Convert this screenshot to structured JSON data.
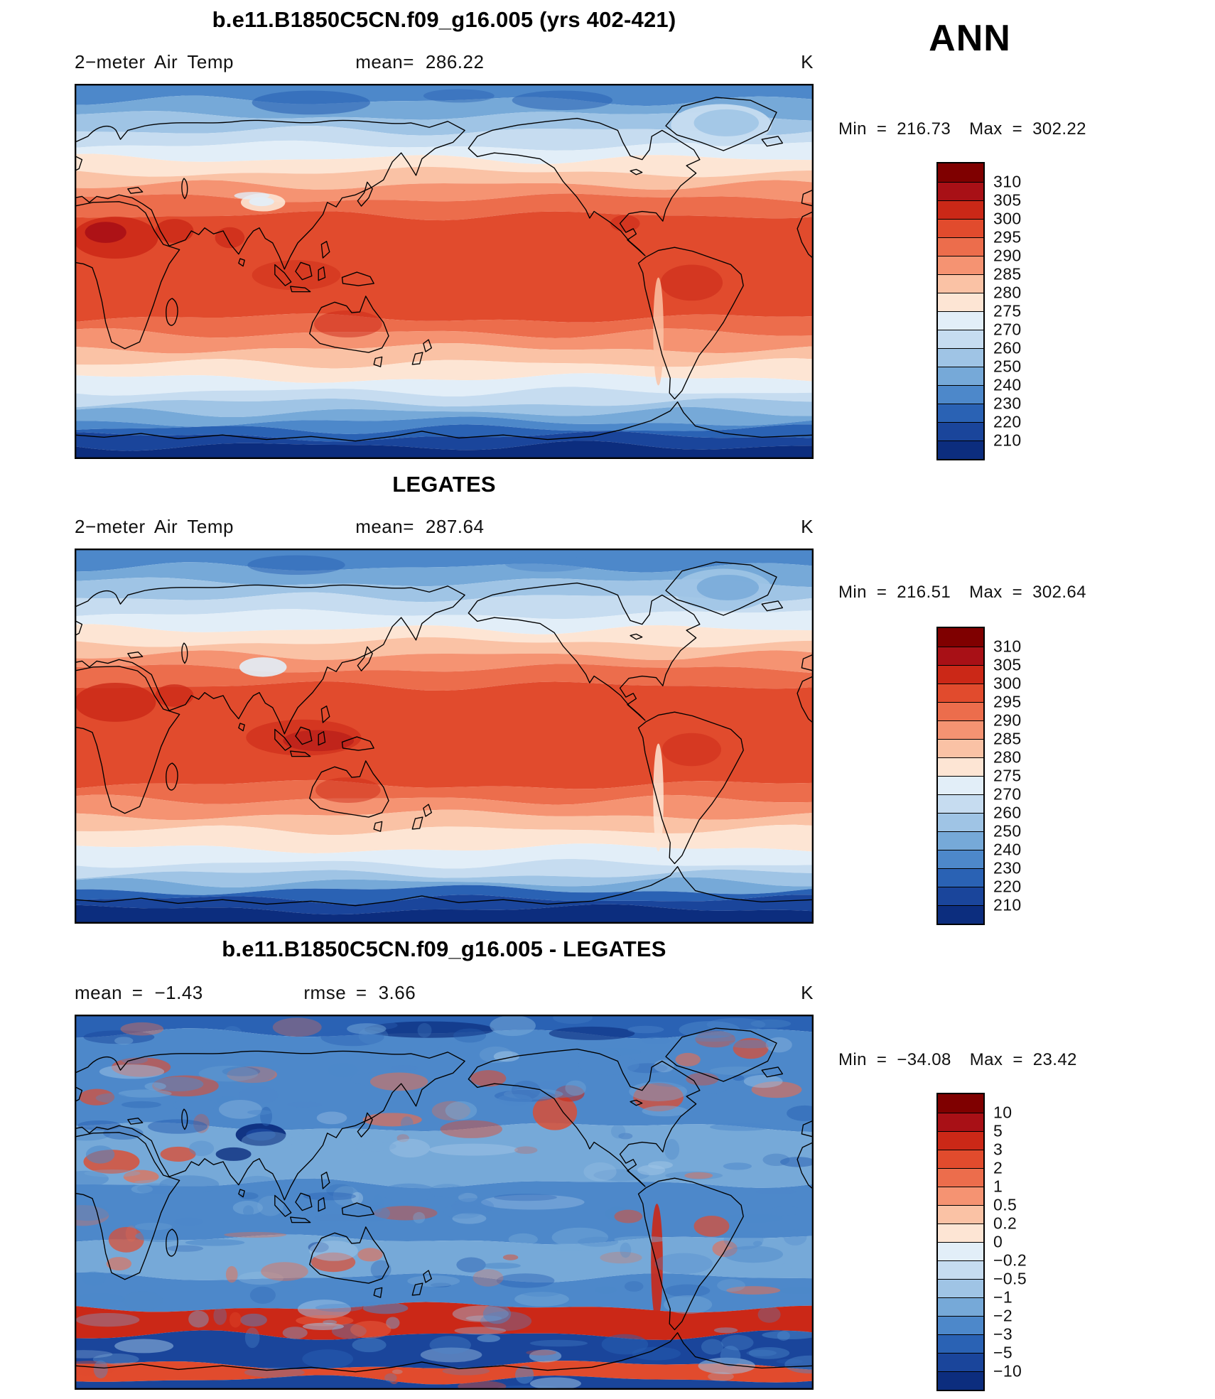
{
  "season": "ANN",
  "labels": {
    "min": "Min",
    "max": "Max",
    "eq": "="
  },
  "chart_data": [
    {
      "type": "heatmap",
      "projection": "global equirectangular (0-360E)",
      "title": "b.e11.B1850C5CN.f09_g16.005 (yrs 402-421)",
      "units": "K",
      "subtitle": {
        "left": "2−meter Air Temp",
        "mean_label": "mean=",
        "mean": "286.22"
      },
      "min": "216.73",
      "max": "302.22",
      "description": "Filled contour map of annual-mean 2 m air temperature: warm tropics (~295-300 K, red) grading to cold poles (~210-230 K, dark blue over the Arctic and Antarctica).",
      "levels": [
        "310",
        "305",
        "300",
        "295",
        "290",
        "285",
        "280",
        "275",
        "270",
        "260",
        "250",
        "240",
        "230",
        "220",
        "210"
      ],
      "palette": [
        "#7f0000",
        "#a81016",
        "#cb2817",
        "#e14b2d",
        "#ec6d4c",
        "#f59372",
        "#fac2a5",
        "#fde5d4",
        "#e2eef8",
        "#c6dcf0",
        "#9fc4e5",
        "#76a9d8",
        "#4d88ca",
        "#2a62b4",
        "#1a459b",
        "#0c2d7e"
      ],
      "bands": [
        {
          "to": 0.045,
          "c": 12
        },
        {
          "to": 0.085,
          "c": 11
        },
        {
          "to": 0.125,
          "c": 10
        },
        {
          "to": 0.165,
          "c": 9
        },
        {
          "to": 0.2,
          "c": 8
        },
        {
          "to": 0.235,
          "c": 7
        },
        {
          "to": 0.27,
          "c": 6
        },
        {
          "to": 0.305,
          "c": 5
        },
        {
          "to": 0.35,
          "c": 4
        },
        {
          "to": 0.625,
          "c": 3
        },
        {
          "to": 0.665,
          "c": 4
        },
        {
          "to": 0.705,
          "c": 5
        },
        {
          "to": 0.745,
          "c": 6
        },
        {
          "to": 0.785,
          "c": 7
        },
        {
          "to": 0.82,
          "c": 8
        },
        {
          "to": 0.85,
          "c": 9
        },
        {
          "to": 0.875,
          "c": 10
        },
        {
          "to": 0.9,
          "c": 11
        },
        {
          "to": 0.92,
          "c": 12
        },
        {
          "to": 0.94,
          "c": 13
        },
        {
          "to": 0.965,
          "c": 14
        },
        {
          "to": 1,
          "c": 15
        }
      ]
    },
    {
      "type": "heatmap",
      "projection": "global equirectangular (0-360E)",
      "title": "LEGATES",
      "units": "K",
      "subtitle": {
        "left": "2−meter Air Temp",
        "mean_label": "mean=",
        "mean": "287.64"
      },
      "min": "216.51",
      "max": "302.64",
      "description": "Observed (LEGATES) annual-mean 2 m air temperature climatology with the same contour levels as the model panel.",
      "levels": [
        "310",
        "305",
        "300",
        "295",
        "290",
        "285",
        "280",
        "275",
        "270",
        "260",
        "250",
        "240",
        "230",
        "220",
        "210"
      ],
      "palette": [
        "#7f0000",
        "#a81016",
        "#cb2817",
        "#e14b2d",
        "#ec6d4c",
        "#f59372",
        "#fac2a5",
        "#fde5d4",
        "#e2eef8",
        "#c6dcf0",
        "#9fc4e5",
        "#76a9d8",
        "#4d88ca",
        "#2a62b4",
        "#1a459b",
        "#0c2d7e"
      ],
      "bands": [
        {
          "to": 0.05,
          "c": 12
        },
        {
          "to": 0.09,
          "c": 11
        },
        {
          "to": 0.13,
          "c": 10
        },
        {
          "to": 0.175,
          "c": 9
        },
        {
          "to": 0.215,
          "c": 8
        },
        {
          "to": 0.25,
          "c": 7
        },
        {
          "to": 0.285,
          "c": 6
        },
        {
          "to": 0.32,
          "c": 5
        },
        {
          "to": 0.365,
          "c": 4
        },
        {
          "to": 0.63,
          "c": 3
        },
        {
          "to": 0.67,
          "c": 4
        },
        {
          "to": 0.71,
          "c": 5
        },
        {
          "to": 0.75,
          "c": 6
        },
        {
          "to": 0.8,
          "c": 7
        },
        {
          "to": 0.84,
          "c": 8
        },
        {
          "to": 0.868,
          "c": 9
        },
        {
          "to": 0.89,
          "c": 10
        },
        {
          "to": 0.91,
          "c": 11
        },
        {
          "to": 0.935,
          "c": 13
        },
        {
          "to": 0.962,
          "c": 14
        },
        {
          "to": 1,
          "c": 15
        }
      ]
    },
    {
      "type": "heatmap",
      "projection": "global equirectangular (0-360E)",
      "title": "b.e11.B1850C5CN.f09_g16.005 - LEGATES",
      "units": "K",
      "subtitle": {
        "mean_label": "mean =",
        "mean": "−1.43",
        "rmse_label": "rmse =",
        "rmse": "3.66"
      },
      "min": "−34.08",
      "max": "23.42",
      "description": "Model minus LEGATES difference map: mostly negative (blue, cold bias) with a strong positive (red) band over the Southern Ocean near Antarctica, deep negative anomaly over Tibet/sea-ice edges, and scattered warm anomalies over land.",
      "levels": [
        "10",
        "5",
        "3",
        "2",
        "1",
        "0.5",
        "0.2",
        "0",
        "−0.2",
        "−0.5",
        "−1",
        "−2",
        "−3",
        "−5",
        "−10"
      ],
      "palette": [
        "#7f0000",
        "#a81016",
        "#cb2817",
        "#e14b2d",
        "#ec6d4c",
        "#f59372",
        "#fac2a5",
        "#fde5d4",
        "#e2eef8",
        "#c6dcf0",
        "#9fc4e5",
        "#76a9d8",
        "#4d88ca",
        "#2a62b4",
        "#1a459b",
        "#0c2d7e"
      ],
      "bands": [
        {
          "to": 0.05,
          "c": 13
        },
        {
          "to": 0.3,
          "c": 12
        },
        {
          "to": 0.45,
          "c": 11
        },
        {
          "to": 0.6,
          "c": 12
        },
        {
          "to": 0.7,
          "c": 11
        },
        {
          "to": 0.78,
          "c": 12
        },
        {
          "to": 0.855,
          "c": 2
        },
        {
          "to": 0.935,
          "c": 14
        },
        {
          "to": 0.972,
          "c": 3
        },
        {
          "to": 1,
          "c": 14
        }
      ]
    }
  ]
}
